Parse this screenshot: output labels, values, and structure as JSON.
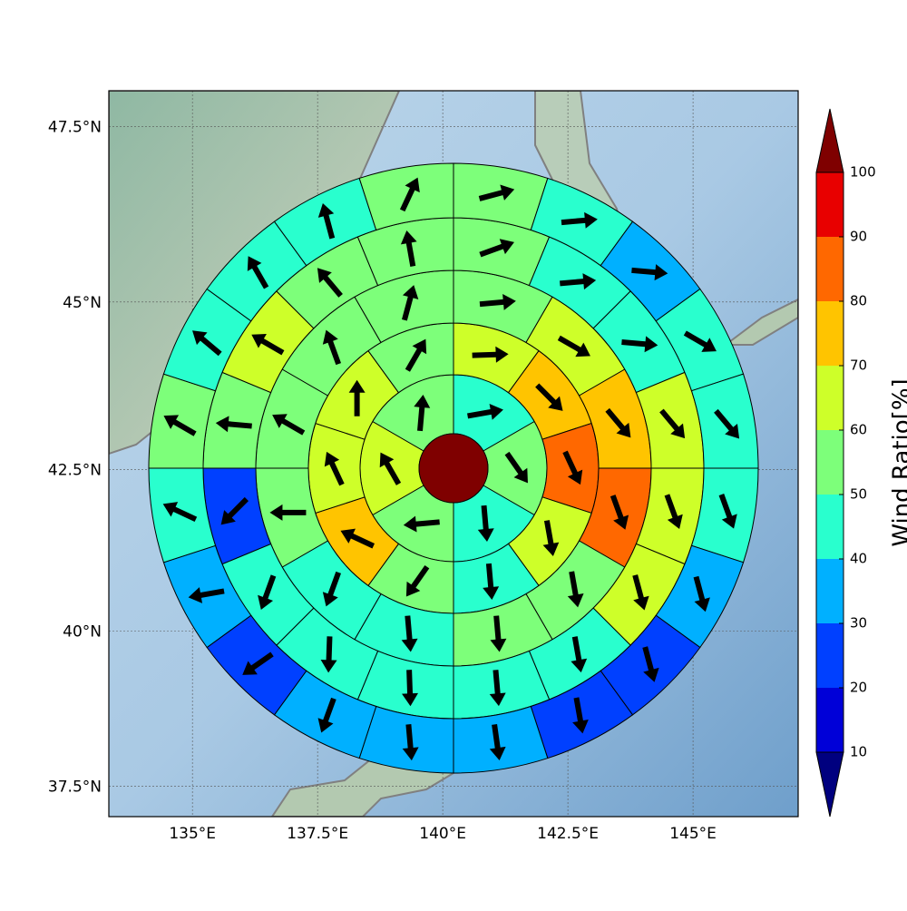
{
  "chart_data": {
    "type": "polar-sectors",
    "xlim": [
      133.33,
      147.1
    ],
    "ylim": [
      37.0,
      48.0
    ],
    "xticks": [
      {
        "value": 135,
        "label": "135°E"
      },
      {
        "value": 137.5,
        "label": "137.5°E"
      },
      {
        "value": 140,
        "label": "140°E"
      },
      {
        "value": 142.5,
        "label": "142.5°E"
      },
      {
        "value": 145,
        "label": "145°E"
      }
    ],
    "yticks": [
      {
        "value": 37.5,
        "label": "37.5°N"
      },
      {
        "value": 40,
        "label": "40°N"
      },
      {
        "value": 42.5,
        "label": "42.5°N"
      },
      {
        "value": 45,
        "label": "45°N"
      },
      {
        "value": 47.5,
        "label": "47.5°N"
      }
    ],
    "grid": true,
    "center_value": 105,
    "rings": [
      {
        "values": [
          45,
          55,
          45,
          55,
          65,
          55
        ],
        "directions": [
          80,
          145,
          175,
          265,
          330,
          5
        ]
      },
      {
        "values": [
          65,
          75,
          85,
          65,
          45,
          55,
          75,
          65,
          65,
          55
        ],
        "directions": [
          88,
          135,
          155,
          170,
          175,
          215,
          295,
          335,
          0,
          30
        ]
      },
      {
        "values": [
          55,
          65,
          75,
          85,
          55,
          55,
          45,
          45,
          55,
          55,
          55,
          55
        ],
        "directions": [
          85,
          120,
          140,
          160,
          170,
          175,
          175,
          200,
          270,
          300,
          340,
          15
        ]
      },
      {
        "values": [
          55,
          45,
          45,
          65,
          65,
          65,
          45,
          45,
          45,
          45,
          45,
          25,
          55,
          65,
          55,
          55
        ],
        "directions": [
          70,
          85,
          95,
          140,
          160,
          165,
          170,
          175,
          178,
          182,
          200,
          225,
          275,
          300,
          320,
          350
        ]
      },
      {
        "values": [
          55,
          45,
          35,
          45,
          45,
          45,
          35,
          25,
          25,
          35,
          35,
          35,
          25,
          35,
          45,
          55,
          45,
          45,
          45,
          55
        ],
        "directions": [
          75,
          85,
          95,
          120,
          140,
          160,
          165,
          165,
          170,
          172,
          175,
          200,
          235,
          260,
          295,
          300,
          310,
          330,
          345,
          25
        ]
      }
    ],
    "colorbar": {
      "label": "Wind Ratio[%]",
      "ticks": [
        10,
        20,
        30,
        40,
        50,
        60,
        70,
        80,
        90,
        100
      ],
      "colors": [
        "#0000d8",
        "#0040ff",
        "#00b0ff",
        "#29ffce",
        "#7dff7a",
        "#ceff29",
        "#ffc400",
        "#ff6800",
        "#e80000"
      ],
      "under_color": "#00007f",
      "over_color": "#7f0000"
    }
  }
}
